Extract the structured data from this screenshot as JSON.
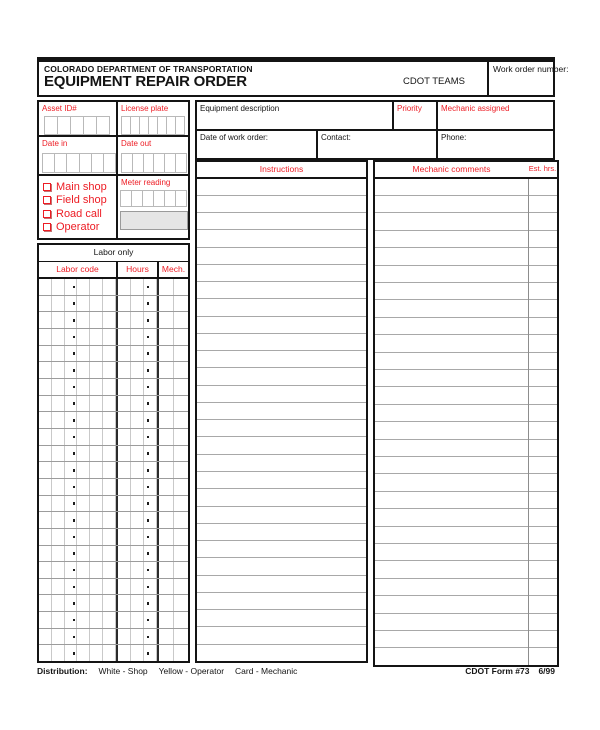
{
  "colors": {
    "red": "#ed1c24",
    "ink": "#141414",
    "comb_line": "#b9b9b9",
    "rule_line": "#a8a8a8",
    "gray_fill": "#e5e5e5"
  },
  "header": {
    "agency": "COLORADO DEPARTMENT OF TRANSPORTATION",
    "title": "EQUIPMENT REPAIR ORDER",
    "system": "CDOT TEAMS",
    "work_order_label": "Work order number:"
  },
  "vehicle_panel": {
    "asset_id_label": "Asset ID#",
    "license_plate_label": "License plate",
    "date_in_label": "Date in",
    "date_out_label": "Date out",
    "meter_reading_label": "Meter reading",
    "location_options": [
      "Main shop",
      "Field shop",
      "Road call",
      "Operator"
    ]
  },
  "work_order_panel": {
    "description_label": "Equipment description",
    "priority_label": "Priority",
    "mechanic_assigned_label": "Mechanic assigned",
    "date_label": "Date of work order:",
    "contact_label": "Contact:",
    "phone_label": "Phone:"
  },
  "labor_panel": {
    "title": "Labor only",
    "columns": {
      "code": "Labor code",
      "hours": "Hours",
      "mech": "Mech."
    },
    "row_count": 23,
    "code_cells": 6,
    "hours_cells": 3,
    "mech_cells": 2
  },
  "combs": {
    "asset_id": 5,
    "license_plate": 7,
    "date_in": 6,
    "date_out": 6,
    "meter": 6
  },
  "instructions_panel": {
    "title": "Instructions",
    "line_count": 28
  },
  "comments_panel": {
    "title": "Mechanic comments",
    "est_hrs_label": "Est. hrs.",
    "line_count": 28
  },
  "footer": {
    "distribution_label": "Distribution:",
    "copies": [
      "White - Shop",
      "Yellow - Operator",
      "Card - Mechanic"
    ],
    "form_id": "CDOT Form #73",
    "revision": "6/99"
  }
}
